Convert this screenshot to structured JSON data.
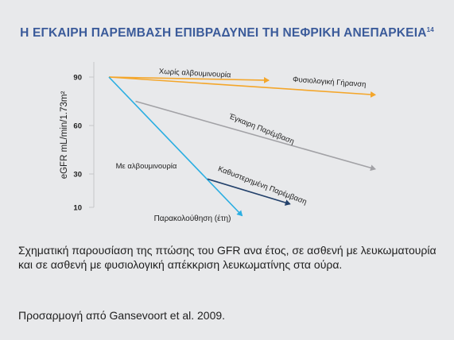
{
  "title": {
    "text": "Η ΕΓΚΑΙΡΗ ΠΑΡΕΜΒΑΣΗ ΕΠΙΒΡΑΔΥΝΕΙ ΤΗ ΝΕΦΡΙΚΗ ΑΝΕΠΑΡΚΕΙΑ",
    "superscript": "14"
  },
  "chart_data": {
    "type": "line",
    "ylabel": "eGFR  mL/min/1.73m²",
    "xlabel": "Παρακολούθηση (έτη)",
    "yticks": [
      10,
      30,
      60,
      90
    ],
    "ylim": [
      10,
      90
    ],
    "xlim": [
      0,
      10
    ],
    "series": [
      {
        "name": "Χωρίς αλβουμινουρία",
        "color": "#f4a62a",
        "points": [
          [
            0,
            90
          ],
          [
            6,
            88
          ]
        ],
        "arrow": true
      },
      {
        "name": "Φυσιολογική Γήρανση",
        "color": "#f4a62a",
        "points": [
          [
            0,
            90
          ],
          [
            10,
            79
          ]
        ],
        "arrow": true
      },
      {
        "name": "Έγκαιρη Παρέμβαση",
        "color": "#a2a2a6",
        "points": [
          [
            1,
            75
          ],
          [
            10,
            33
          ]
        ],
        "arrow": true
      },
      {
        "name": "Με αλβουμινουρία",
        "color": "#2aaee2",
        "points": [
          [
            0,
            90
          ],
          [
            5,
            5
          ]
        ],
        "arrow": true
      },
      {
        "name": "Καθυστερημένη Παρέμβαση",
        "color": "#23416b",
        "points": [
          [
            3.7,
            27
          ],
          [
            6.8,
            12
          ]
        ],
        "arrow": true
      }
    ]
  },
  "caption": "Σχηματική παρουσίαση της πτώσης του GFR ανα έτος, σε ασθενή με λευκωματουρία και σε ασθενή με φυσιολογική απέκκριση λευκωματίνης στα ούρα.",
  "source": "Προσαρμογή από Gansevoort et al. 2009."
}
